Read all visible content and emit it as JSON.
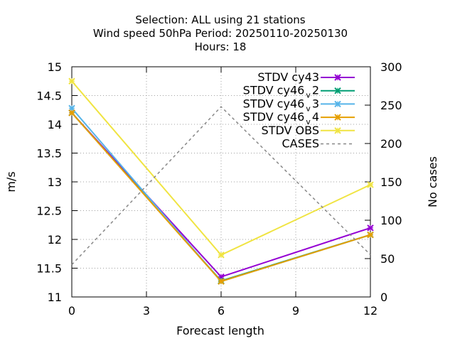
{
  "chart_data": {
    "type": "line",
    "title_lines": [
      "Selection: ALL using    21 stations",
      "Wind speed 50hPa   Period: 20250110-20250130",
      "Hours:  18"
    ],
    "xlabel": "Forecast length",
    "ylabel": "m/s",
    "y2label": "No cases",
    "x": [
      0,
      6,
      12
    ],
    "xticks": [
      0,
      3,
      6,
      9,
      12
    ],
    "xtick_labels": [
      "0",
      "3",
      "6",
      "9",
      "12"
    ],
    "xlim": [
      0,
      12
    ],
    "ylim": [
      11,
      15
    ],
    "yticks": [
      "11",
      "11.5",
      "12",
      "12.5",
      "13",
      "13.5",
      "14",
      "14.5",
      "15"
    ],
    "y2lim": [
      0,
      300
    ],
    "y2ticks": [
      "0",
      "50",
      "100",
      "150",
      "200",
      "250",
      "300"
    ],
    "grid": true,
    "legend_position": "top-right",
    "series": [
      {
        "label_main": "STDV cy43",
        "label_sub": "",
        "color": "#9400d3",
        "axis": "y1",
        "marker": "x",
        "dash": false,
        "values": [
          14.2,
          11.35,
          12.2
        ]
      },
      {
        "label_main": "STDV cy46",
        "label_sub": "v 2",
        "color": "#009e73",
        "axis": "y1",
        "marker": "x",
        "dash": false,
        "values": [
          14.2,
          11.28,
          12.08
        ]
      },
      {
        "label_main": "STDV cy46",
        "label_sub": "v 3",
        "color": "#56b4e9",
        "axis": "y1",
        "marker": "x",
        "dash": false,
        "values": [
          14.28,
          11.27,
          12.08
        ]
      },
      {
        "label_main": "STDV cy46",
        "label_sub": "v 4",
        "color": "#e69f00",
        "axis": "y1",
        "marker": "x",
        "dash": false,
        "values": [
          14.2,
          11.27,
          12.08
        ]
      },
      {
        "label_main": "STDV OBS",
        "label_sub": "",
        "color": "#f0e442",
        "axis": "y1",
        "marker": "x",
        "dash": false,
        "values": [
          14.75,
          11.73,
          12.95
        ]
      },
      {
        "label_main": "CASES",
        "label_sub": "",
        "color": "#888888",
        "axis": "y2",
        "marker": "none",
        "dash": true,
        "values": [
          42,
          248,
          55
        ]
      }
    ]
  }
}
